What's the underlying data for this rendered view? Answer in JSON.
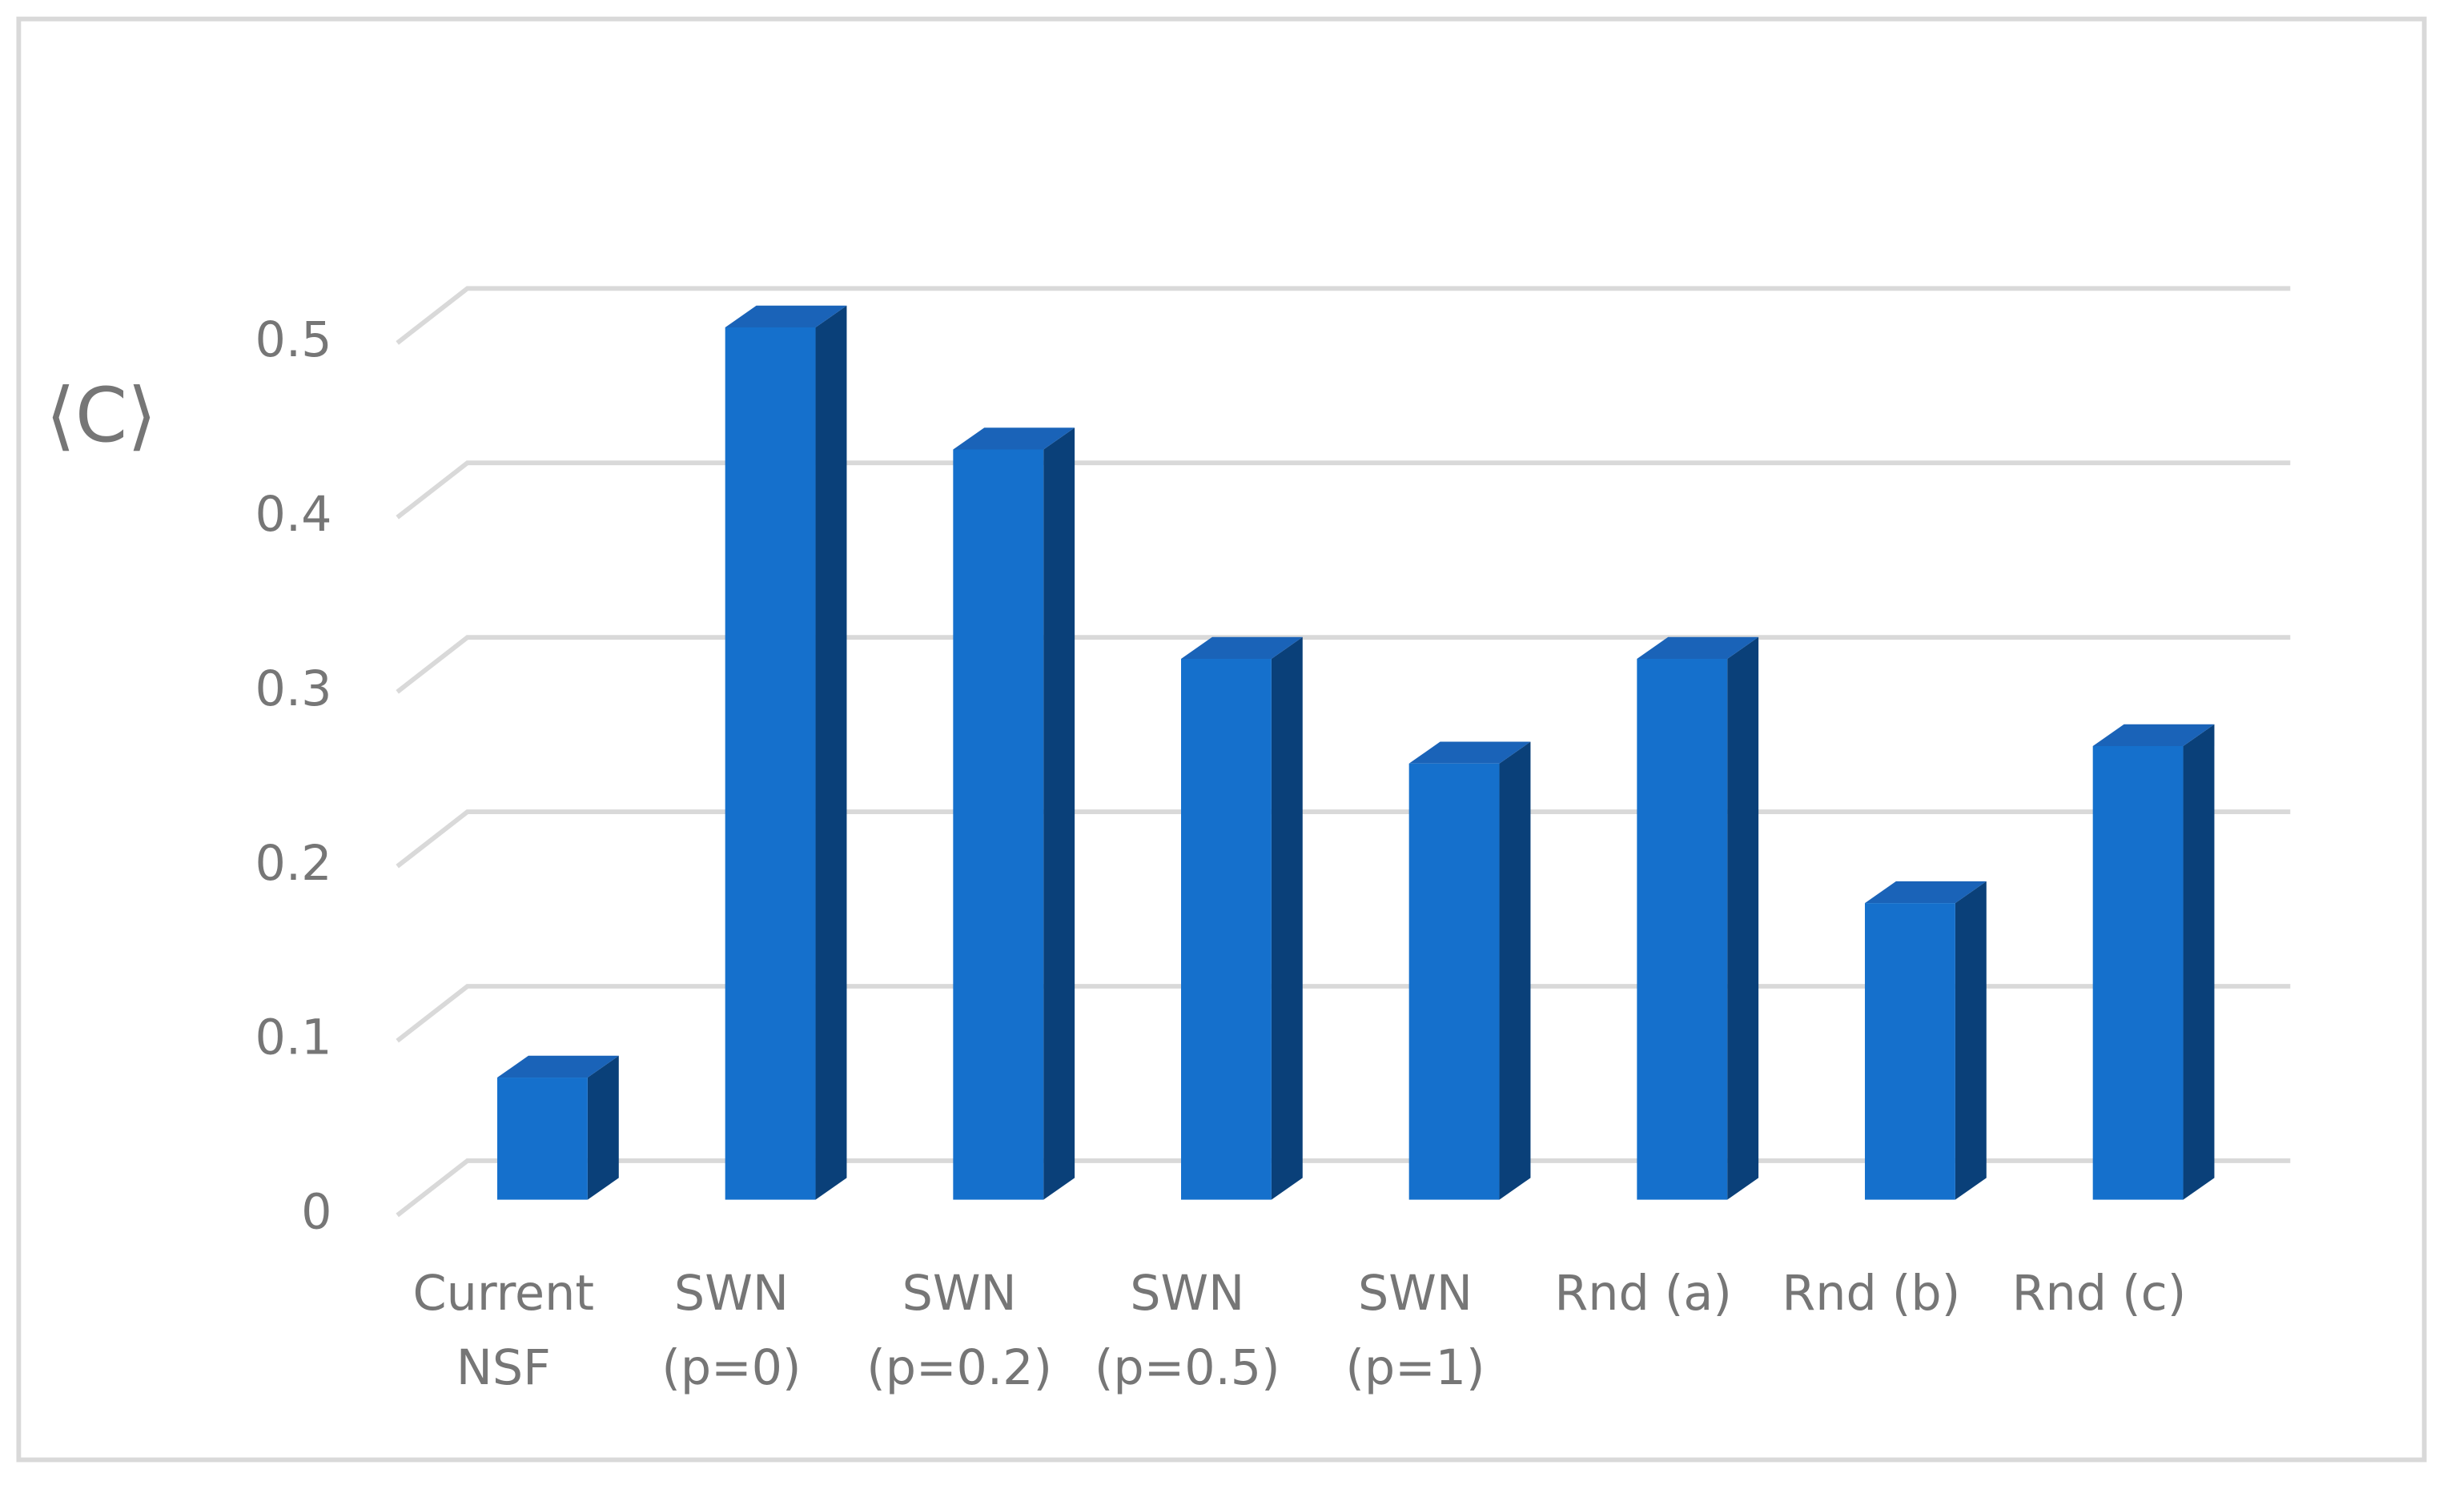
{
  "chart_data": {
    "type": "bar3d",
    "ylabel": "⟨C⟩",
    "categories": [
      [
        "Current",
        "NSF"
      ],
      [
        "SWN",
        "(p=0)"
      ],
      [
        "SWN",
        "(p=0.2)"
      ],
      [
        "SWN",
        "(p=0.5)"
      ],
      [
        "SWN",
        "(p=1)"
      ],
      [
        "Rnd (a)"
      ],
      [
        "Rnd (b)"
      ],
      [
        "Rnd (c)"
      ]
    ],
    "values": [
      0.07,
      0.5,
      0.43,
      0.31,
      0.25,
      0.31,
      0.17,
      0.26
    ],
    "color": "#1570cc",
    "ylim": [
      0,
      0.5
    ],
    "yticks": [
      0,
      0.1,
      0.2,
      0.3,
      0.4,
      0.5
    ],
    "grid": true
  }
}
